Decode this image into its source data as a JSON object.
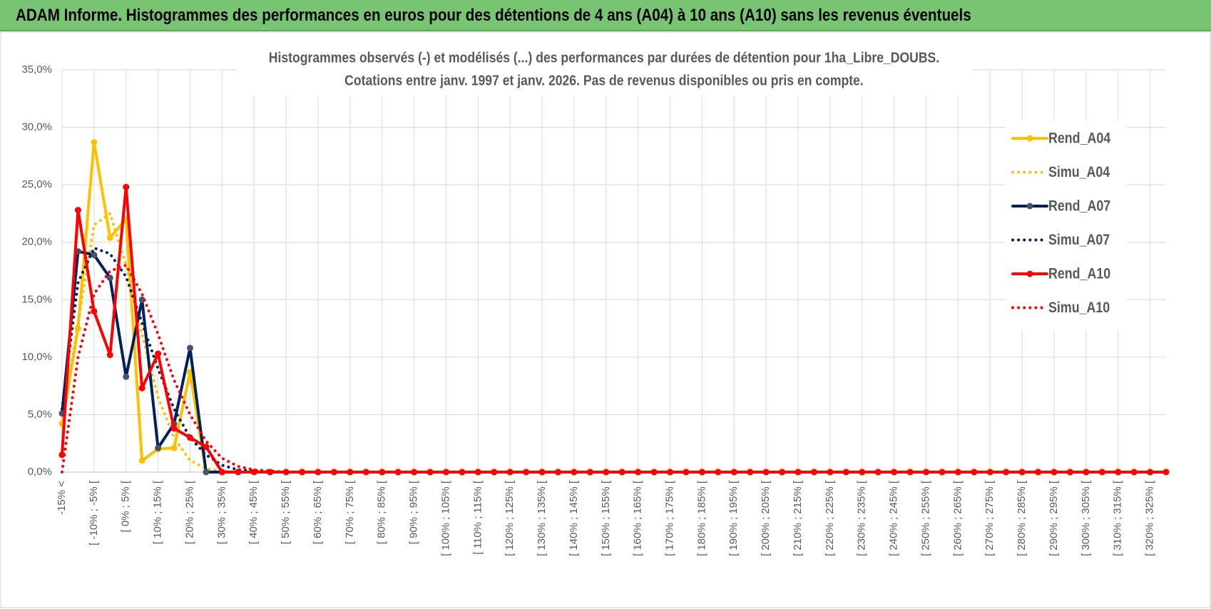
{
  "header": {
    "title": "ADAM Informe. Histogrammes des performances en euros pour des détentions de 4 ans (A04) à 10 ans (A10) sans les revenus éventuels"
  },
  "chart_data": {
    "type": "line",
    "title": "Histogrammes observés (-) et modélisés (...) des performances par durées de détention pour 1ha_Libre_DOUBS.",
    "subtitle": "Cotations entre janv. 1997 et janv. 2026. Pas de revenus disponibles ou pris en compte.",
    "categories": [
      "-15% <",
      null,
      "[ -10% ; -5% [",
      null,
      "[ 0% ; 5% [",
      null,
      "[ 10% ; 15% [",
      null,
      "[ 20% ; 25% [",
      null,
      "[ 30% ; 35% [",
      null,
      "[ 40% ; 45% [",
      null,
      "[ 50% ; 55% [",
      null,
      "[ 60% ; 65% [",
      null,
      "[ 70% ; 75% [",
      null,
      "[ 80% ; 85% [",
      null,
      "[ 90% ; 95% [",
      null,
      "[ 100% ; 105% [",
      null,
      "[ 110% ; 115% [",
      null,
      "[ 120% ; 125% [",
      null,
      "[ 130% ; 135% [",
      null,
      "[ 140% ; 145% [",
      null,
      "[ 150% ; 155% [",
      null,
      "[ 160% ; 165% [",
      null,
      "[ 170% ; 175% [",
      null,
      "[ 180% ; 185% [",
      null,
      "[ 190% ; 195% [",
      null,
      "[ 200% ; 205% [",
      null,
      "[ 210% ; 215% [",
      null,
      "[ 220% ; 225% [",
      null,
      "[ 230% ; 235% [",
      null,
      "[ 240% ; 245% [",
      null,
      "[ 250% ; 255% [",
      null,
      "[ 260% ; 265% [",
      null,
      "[ 270% ; 275% [",
      null,
      "[ 280% ; 285% [",
      null,
      "[ 290% ; 295% [",
      null,
      "[ 300% ; 305% [",
      null,
      "[ 310% ; 315% [",
      null,
      "[ 320% ; 325% [",
      null
    ],
    "series": [
      {
        "name": "Rend_A04",
        "color": "#ffc000",
        "style": "solid",
        "values": [
          4.2,
          12.5,
          28.7,
          20.4,
          22.0,
          1.0,
          2.0,
          2.1,
          8.7,
          0,
          0,
          0,
          0,
          0,
          0,
          0,
          0,
          0,
          0,
          0,
          0,
          0,
          0,
          0,
          0,
          0,
          0,
          0,
          0,
          0,
          0,
          0,
          0,
          0,
          0,
          0,
          0,
          0,
          0,
          0,
          0,
          0,
          0,
          0,
          0,
          0,
          0,
          0,
          0,
          0,
          0,
          0,
          0,
          0,
          0,
          0,
          0,
          0,
          0,
          0,
          0,
          0,
          0,
          0,
          0,
          0,
          0,
          0,
          0,
          0
        ]
      },
      {
        "name": "Simu_A04",
        "color": "#ffc000",
        "style": "dotted",
        "values": [
          4.3,
          13.0,
          21.5,
          22.5,
          18.0,
          12.0,
          6.5,
          3.0,
          1.0,
          0.3,
          0.1,
          0,
          0,
          0,
          0,
          0,
          0,
          0,
          0,
          0,
          0,
          0,
          0,
          0,
          0,
          0,
          0,
          0,
          0,
          0,
          0,
          0,
          0,
          0,
          0,
          0,
          0,
          0,
          0,
          0,
          0,
          0,
          0,
          0,
          0,
          0,
          0,
          0,
          0,
          0,
          0,
          0,
          0,
          0,
          0,
          0,
          0,
          0,
          0,
          0,
          0,
          0,
          0,
          0,
          0,
          0,
          0,
          0,
          0,
          0
        ]
      },
      {
        "name": "Rend_A07",
        "color": "#002060",
        "style": "solid",
        "values": [
          5.1,
          19.2,
          18.9,
          16.9,
          8.3,
          15.0,
          2.1,
          4.2,
          10.8,
          0,
          0,
          0,
          0,
          0,
          0,
          0,
          0,
          0,
          0,
          0,
          0,
          0,
          0,
          0,
          0,
          0,
          0,
          0,
          0,
          0,
          0,
          0,
          0,
          0,
          0,
          0,
          0,
          0,
          0,
          0,
          0,
          0,
          0,
          0,
          0,
          0,
          0,
          0,
          0,
          0,
          0,
          0,
          0,
          0,
          0,
          0,
          0,
          0,
          0,
          0,
          0,
          0,
          0,
          0,
          0,
          0,
          0,
          0,
          0,
          0
        ]
      },
      {
        "name": "Simu_A07",
        "color": "#002060",
        "style": "dotted",
        "values": [
          5.5,
          16.5,
          19.5,
          19.0,
          17.0,
          13.0,
          9.0,
          5.5,
          3.0,
          1.5,
          0.6,
          0.2,
          0.1,
          0,
          0,
          0,
          0,
          0,
          0,
          0,
          0,
          0,
          0,
          0,
          0,
          0,
          0,
          0,
          0,
          0,
          0,
          0,
          0,
          0,
          0,
          0,
          0,
          0,
          0,
          0,
          0,
          0,
          0,
          0,
          0,
          0,
          0,
          0,
          0,
          0,
          0,
          0,
          0,
          0,
          0,
          0,
          0,
          0,
          0,
          0,
          0,
          0,
          0,
          0,
          0,
          0,
          0,
          0,
          0,
          0
        ]
      },
      {
        "name": "Rend_A10",
        "color": "#ff0000",
        "style": "solid",
        "values": [
          1.5,
          22.8,
          14.0,
          10.2,
          24.8,
          7.3,
          10.3,
          3.8,
          3.0,
          2.2,
          0,
          0,
          0,
          0,
          0,
          0,
          0,
          0,
          0,
          0,
          0,
          0,
          0,
          0,
          0,
          0,
          0,
          0,
          0,
          0,
          0,
          0,
          0,
          0,
          0,
          0,
          0,
          0,
          0,
          0,
          0,
          0,
          0,
          0,
          0,
          0,
          0,
          0,
          0,
          0,
          0,
          0,
          0,
          0,
          0,
          0,
          0,
          0,
          0,
          0,
          0,
          0,
          0,
          0,
          0,
          0,
          0,
          0,
          0,
          0
        ]
      },
      {
        "name": "Simu_A10",
        "color": "#ff0000",
        "style": "dotted",
        "values": [
          0,
          10.0,
          15.5,
          17.5,
          18.0,
          15.5,
          12.0,
          8.0,
          5.0,
          2.7,
          1.2,
          0.5,
          0.2,
          0.1,
          0,
          0,
          0,
          0,
          0,
          0,
          0,
          0,
          0,
          0,
          0,
          0,
          0,
          0,
          0,
          0,
          0,
          0,
          0,
          0,
          0,
          0,
          0,
          0,
          0,
          0,
          0,
          0,
          0,
          0,
          0,
          0,
          0,
          0,
          0,
          0,
          0,
          0,
          0,
          0,
          0,
          0,
          0,
          0,
          0,
          0,
          0,
          0,
          0,
          0,
          0,
          0,
          0,
          0,
          0,
          0
        ]
      }
    ],
    "ylim": [
      0,
      35
    ],
    "yticks": [
      {
        "value": 0,
        "label": "0,0%"
      },
      {
        "value": 5,
        "label": "5,0%"
      },
      {
        "value": 10,
        "label": "10,0%"
      },
      {
        "value": 15,
        "label": "15,0%"
      },
      {
        "value": 20,
        "label": "20,0%"
      },
      {
        "value": 25,
        "label": "25,0%"
      },
      {
        "value": 30,
        "label": "30,0%"
      },
      {
        "value": 35,
        "label": "35,0%"
      }
    ],
    "grid": true,
    "legend": "right"
  }
}
